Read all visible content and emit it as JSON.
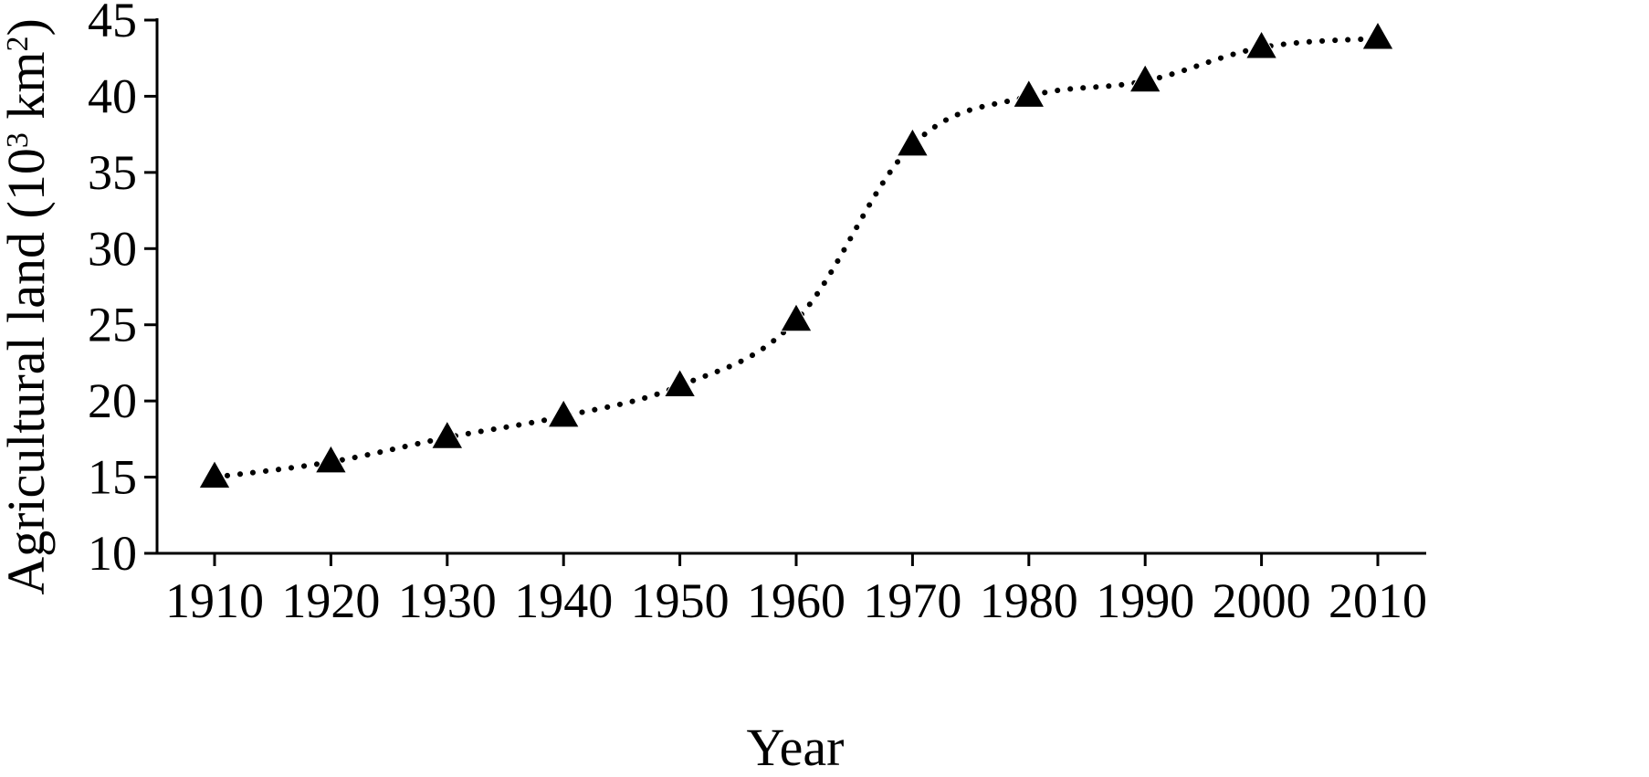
{
  "chart_data": {
    "type": "line",
    "title": "",
    "xlabel": "Year",
    "ylabel": {
      "prefix": "Agricultural land (10",
      "sup1": "3",
      "mid": " km",
      "sup2": "2",
      "suffix": ")"
    },
    "categories": [
      "1910",
      "1920",
      "1930",
      "1940",
      "1950",
      "1960",
      "1970",
      "1980",
      "1990",
      "2000",
      "2010"
    ],
    "series": [
      {
        "marker": "triangle",
        "line_style": "dotted",
        "color": "#000000",
        "values": [
          15.0,
          16.0,
          17.6,
          19.0,
          21.0,
          25.3,
          36.8,
          40.0,
          41.0,
          43.2,
          43.8
        ]
      }
    ],
    "ylim": [
      10,
      45
    ],
    "yticks": [
      "10",
      "15",
      "20",
      "25",
      "30",
      "35",
      "40",
      "45"
    ],
    "grid": false,
    "legend": "none"
  }
}
